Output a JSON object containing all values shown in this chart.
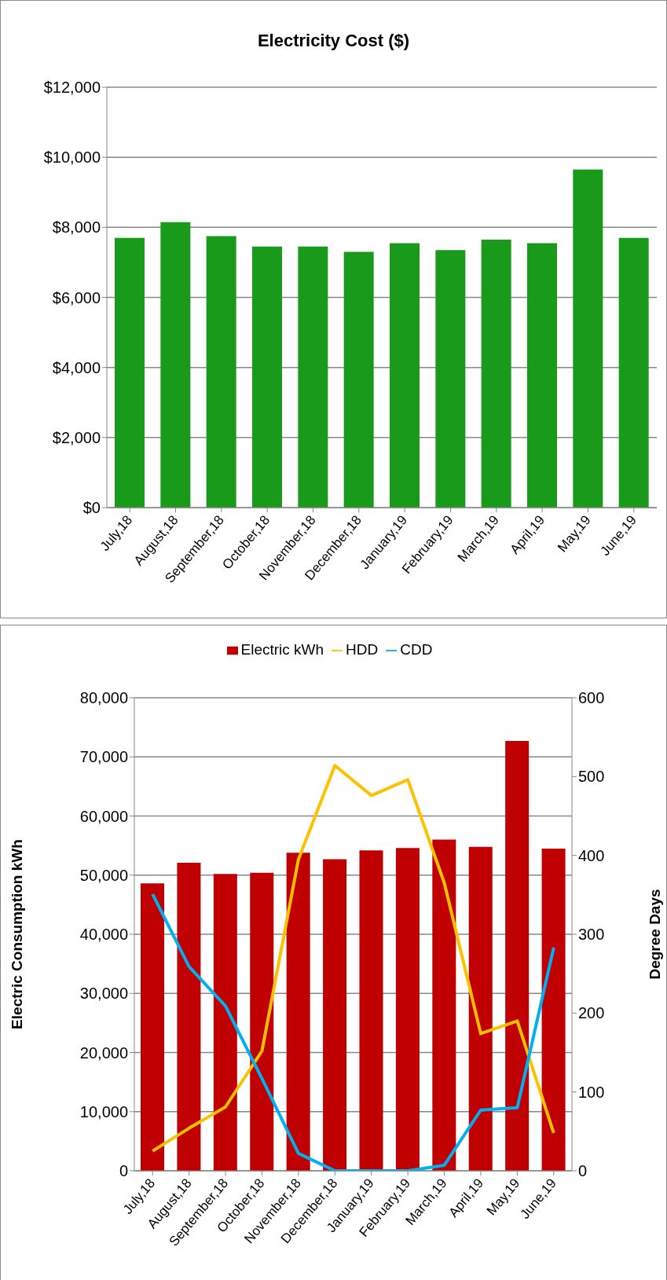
{
  "chart_data": [
    {
      "type": "bar",
      "title": "Electricity Cost ($)",
      "categories": [
        "July,18",
        "August,18",
        "September,18",
        "October,18",
        "November,18",
        "December,18",
        "January,19",
        "February,19",
        "March,19",
        "April,19",
        "May,19",
        "June,19"
      ],
      "values": [
        7700,
        8150,
        7750,
        7450,
        7450,
        7300,
        7550,
        7350,
        7650,
        7550,
        9650,
        7700
      ],
      "color": "#1a9a1a",
      "ylim": [
        0,
        12000
      ],
      "yticks": [
        {
          "value": 0,
          "label": "$0"
        },
        {
          "value": 2000,
          "label": "$2,000"
        },
        {
          "value": 4000,
          "label": "$4,000"
        },
        {
          "value": 6000,
          "label": "$6,000"
        },
        {
          "value": 8000,
          "label": "$8,000"
        },
        {
          "value": 10000,
          "label": "$10,000"
        },
        {
          "value": 12000,
          "label": "$12,000"
        }
      ],
      "grid": "y"
    },
    {
      "type": "bar",
      "ylabel": "Electric Consumption  kWh",
      "y2label": "Degree Days",
      "categories": [
        "July,18",
        "August,18",
        "September,18",
        "October,18",
        "November,18",
        "December,18",
        "January,19",
        "February,19",
        "March,19",
        "April,19",
        "May,19",
        "June,19"
      ],
      "series": [
        {
          "name": "Electric kWh",
          "color": "#c00000",
          "values": [
            48600,
            52100,
            50200,
            50400,
            53800,
            52700,
            54200,
            54600,
            56000,
            54800,
            72700,
            54500
          ]
        },
        {
          "name": "HDD",
          "type": "line",
          "axis": "y2",
          "color": "#ffc000",
          "values": [
            25,
            54,
            81,
            152,
            395,
            514,
            476,
            496,
            365,
            174,
            190,
            48
          ]
        },
        {
          "name": "CDD",
          "type": "line",
          "axis": "y2",
          "color": "#00b0f0",
          "values": [
            351,
            259,
            209,
            117,
            22,
            0,
            0,
            0,
            7,
            77,
            80,
            283
          ]
        }
      ],
      "ylim": [
        0,
        80000
      ],
      "yticks": [
        {
          "value": 0,
          "label": "0"
        },
        {
          "value": 10000,
          "label": "10,000"
        },
        {
          "value": 20000,
          "label": "20,000"
        },
        {
          "value": 30000,
          "label": "30,000"
        },
        {
          "value": 40000,
          "label": "40,000"
        },
        {
          "value": 50000,
          "label": "50,000"
        },
        {
          "value": 60000,
          "label": "60,000"
        },
        {
          "value": 70000,
          "label": "70,000"
        },
        {
          "value": 80000,
          "label": "80,000"
        }
      ],
      "y2lim": [
        0,
        600
      ],
      "y2ticks": [
        0,
        100,
        200,
        300,
        400,
        500,
        600
      ],
      "grid": "y",
      "legend": "top",
      "marker": "none",
      "line_style": "solid"
    }
  ]
}
